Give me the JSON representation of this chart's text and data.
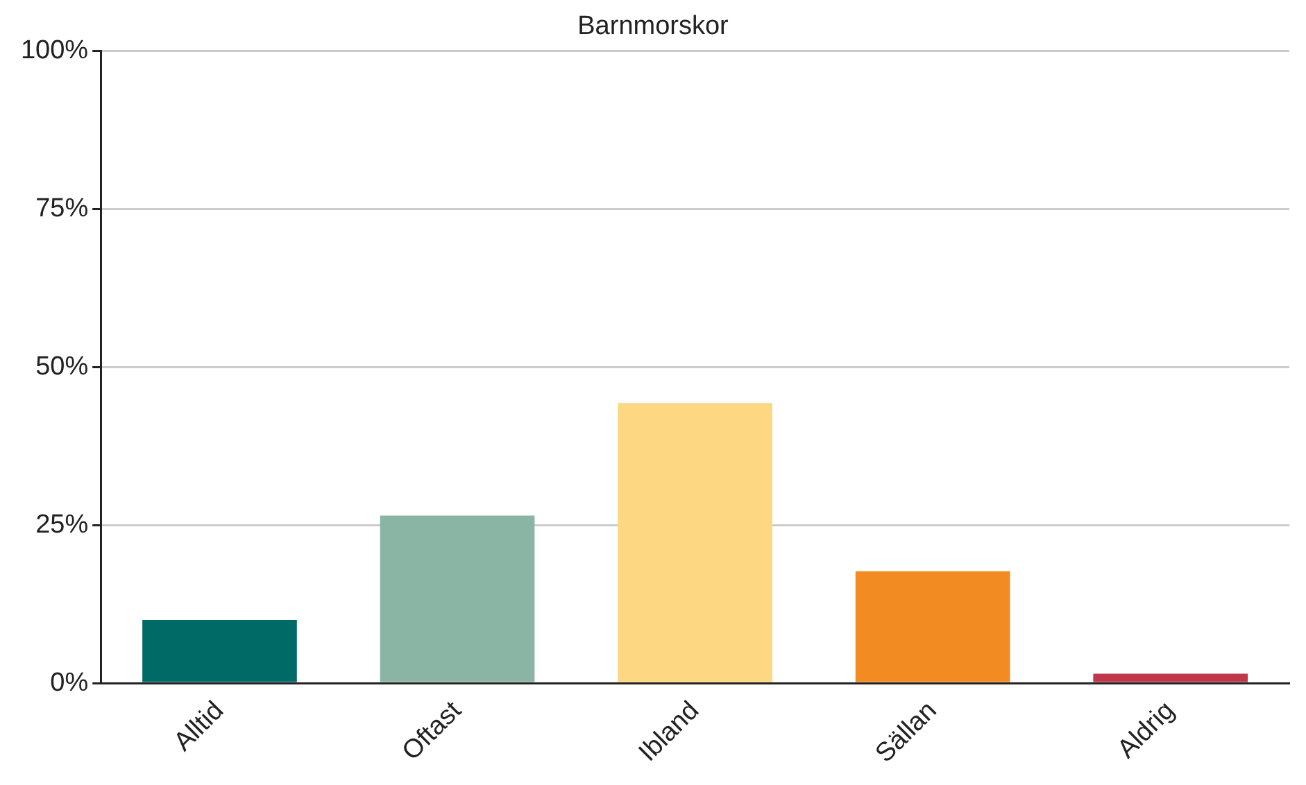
{
  "chart_data": {
    "type": "bar",
    "title": "Barnmorskor",
    "categories": [
      "Alltid",
      "Oftast",
      "Ibland",
      "Sällan",
      "Aldrig"
    ],
    "values": [
      10,
      26.5,
      44.3,
      17.7,
      1.5
    ],
    "colors": [
      "#006a66",
      "#8ab5a5",
      "#fdd782",
      "#f28c22",
      "#c0364a"
    ],
    "ylim": [
      0,
      100
    ],
    "yticks": [
      {
        "value": 0,
        "label": "0%"
      },
      {
        "value": 25,
        "label": "25%"
      },
      {
        "value": 50,
        "label": "50%"
      },
      {
        "value": 75,
        "label": "75%"
      },
      {
        "value": 100,
        "label": "100%"
      }
    ],
    "grid": "y",
    "legend": false
  }
}
